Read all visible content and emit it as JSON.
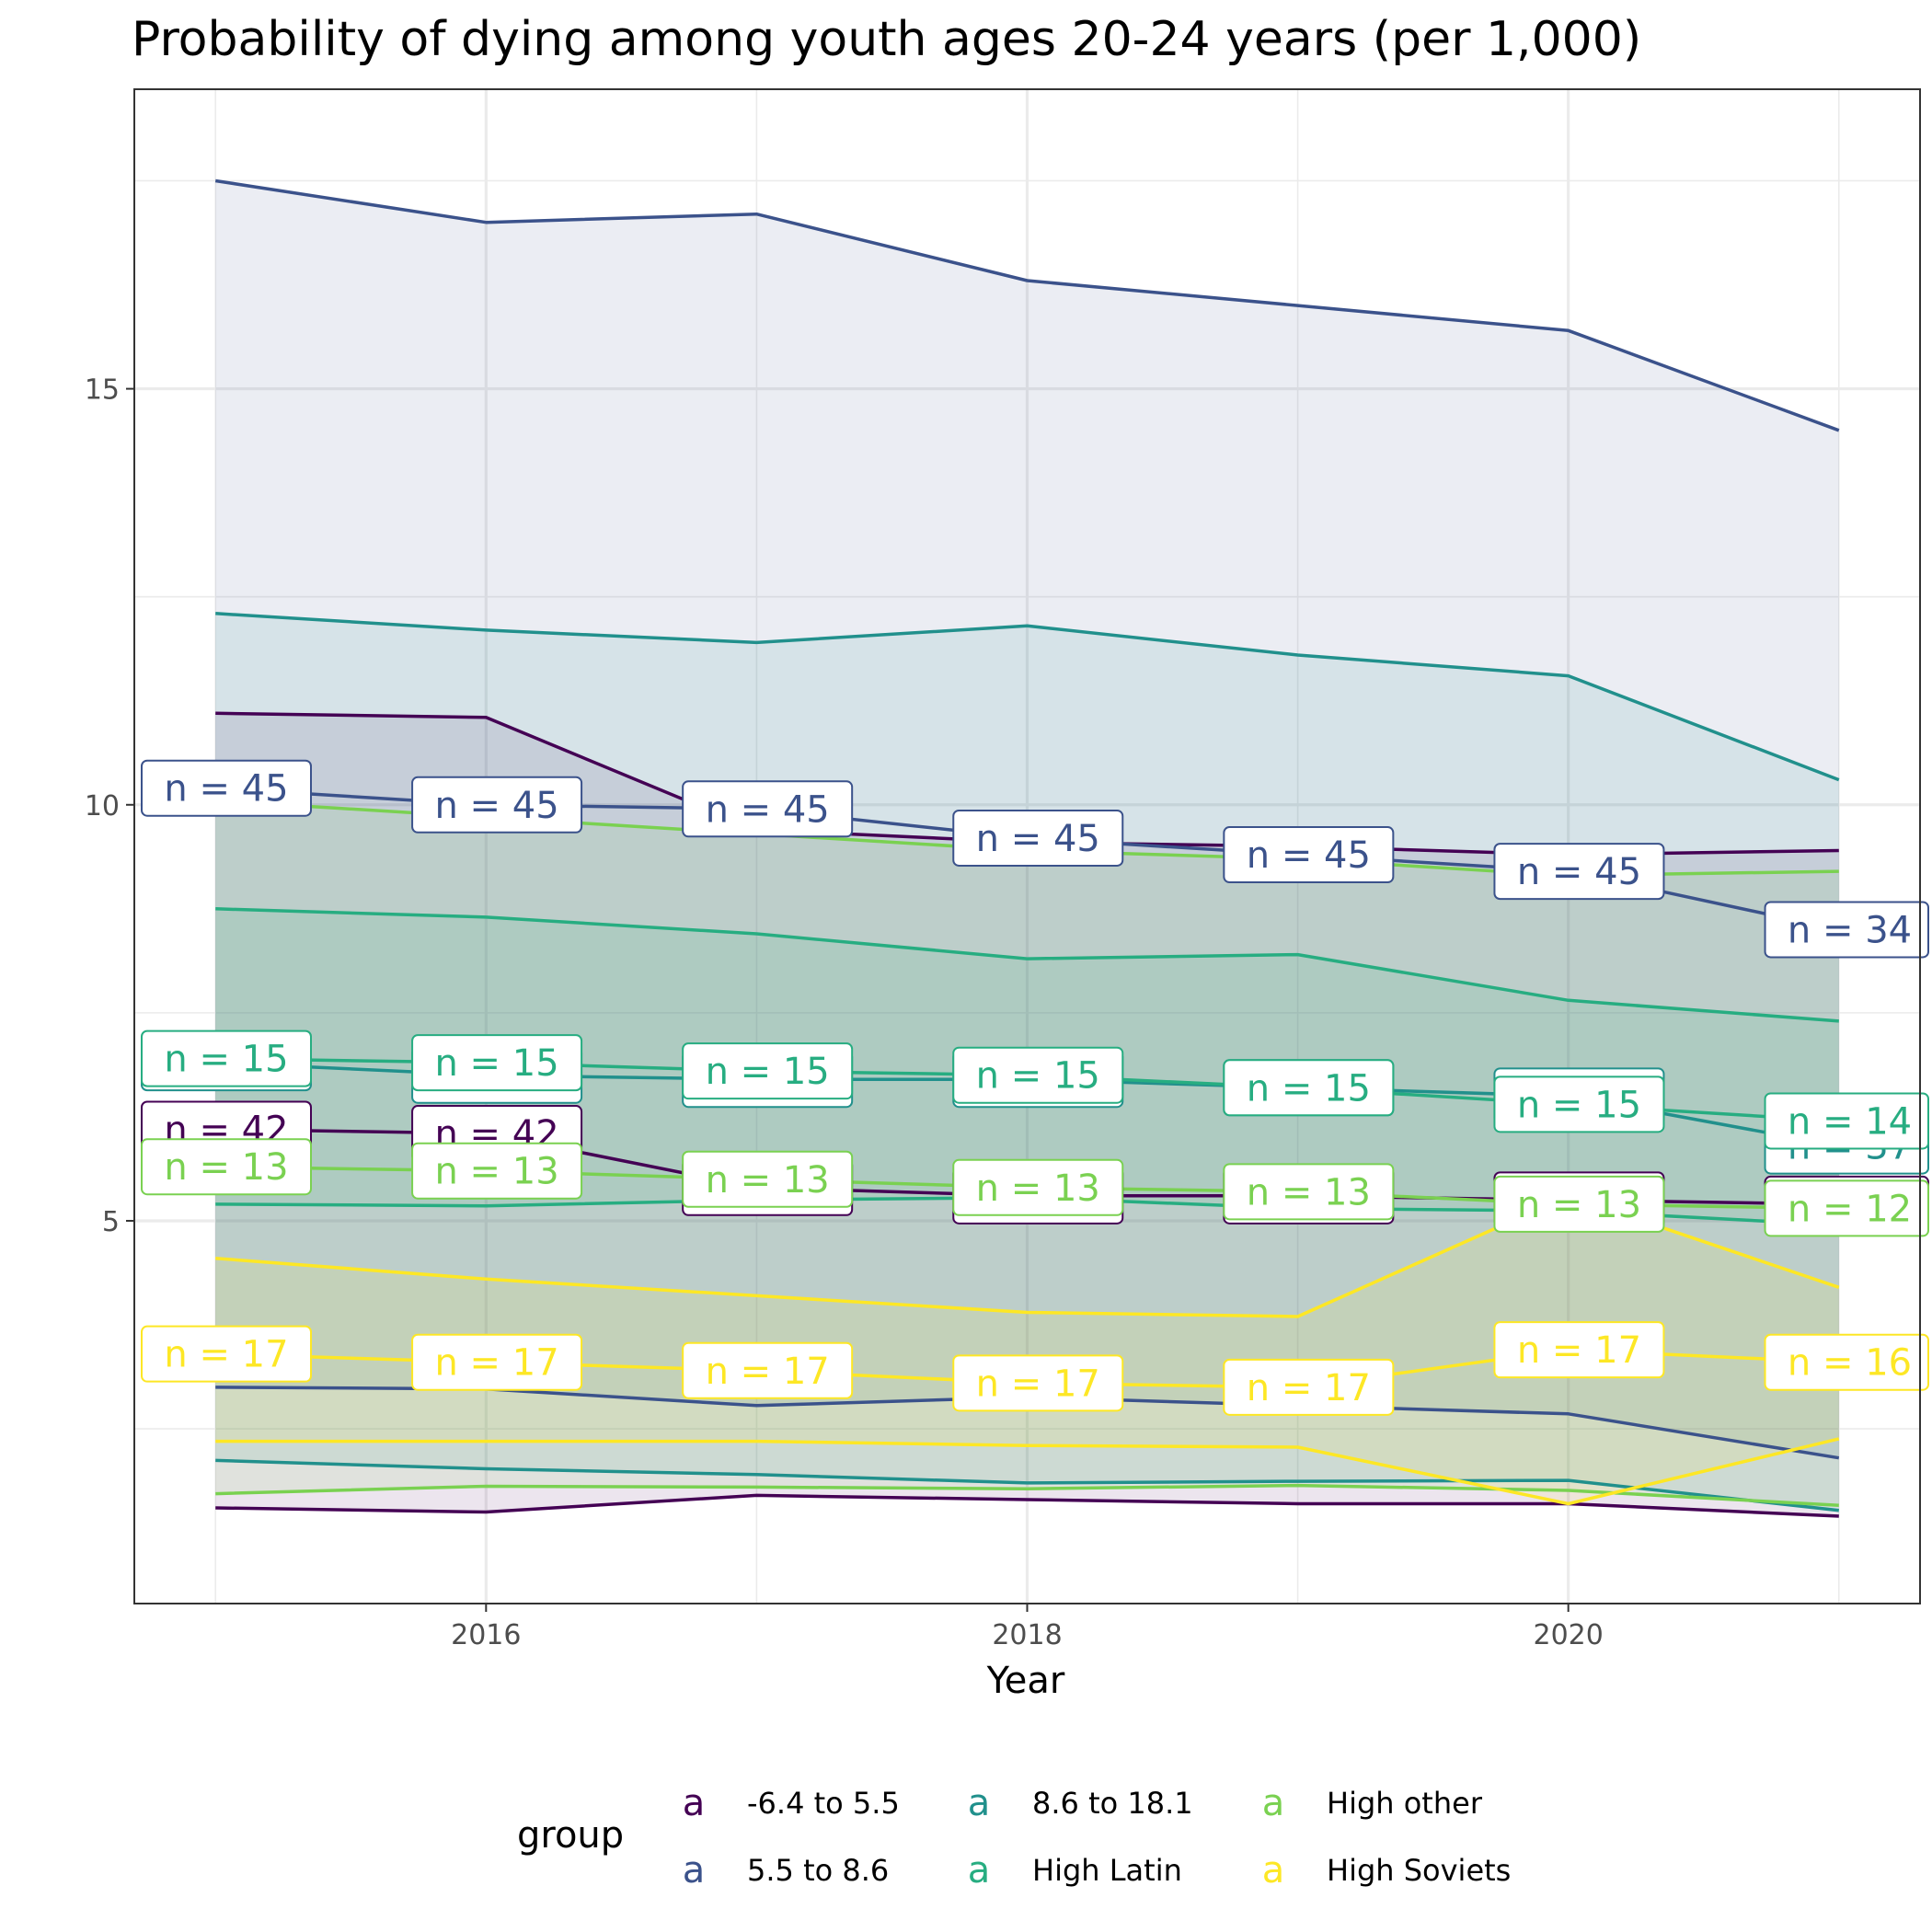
{
  "chart_data": {
    "type": "area",
    "title": "Probability of dying among youth ages 20-24 years (per 1,000)",
    "xlabel": "Year",
    "ylabel": "",
    "xlim": [
      2014.7,
      2021.3
    ],
    "ylim": [
      0.4,
      18.6
    ],
    "x_ticks": [
      2016,
      2018,
      2020
    ],
    "y_ticks": [
      5,
      10,
      15
    ],
    "grid": true,
    "legend": {
      "title": "group",
      "position": "bottom",
      "key_glyph": "a"
    },
    "x": [
      2015,
      2016,
      2017,
      2018,
      2019,
      2020,
      2021
    ],
    "series": [
      {
        "name": "-6.4 to 5.5",
        "color": "#440154",
        "mean": [
          6.1,
          6.05,
          5.4,
          5.3,
          5.3,
          5.25,
          5.2
        ],
        "upper": [
          11.1,
          11.05,
          9.7,
          9.55,
          9.5,
          9.4,
          9.45
        ],
        "lower": [
          1.55,
          1.5,
          1.7,
          1.65,
          1.6,
          1.6,
          1.45
        ],
        "labels": [
          "n = 42",
          "n = 42",
          "n = 42",
          "n = 42",
          "n = 42",
          "n = 42",
          "n = 42"
        ]
      },
      {
        "name": "5.5 to 8.6",
        "color": "#3b528b",
        "mean": [
          10.2,
          10.0,
          9.95,
          9.6,
          9.4,
          9.2,
          8.5
        ],
        "upper": [
          17.5,
          17.0,
          17.1,
          16.3,
          16.0,
          15.7,
          14.5
        ],
        "lower": [
          3.0,
          2.98,
          2.78,
          2.88,
          2.78,
          2.68,
          2.15
        ],
        "labels": [
          "n = 45",
          "n = 45",
          "n = 45",
          "n = 45",
          "n = 45",
          "n = 45",
          "n = 34"
        ]
      },
      {
        "name": "8.6 to 18.1",
        "color": "#21908c",
        "mean": [
          6.9,
          6.75,
          6.7,
          6.7,
          6.6,
          6.5,
          5.9
        ],
        "upper": [
          12.3,
          12.1,
          11.95,
          12.15,
          11.8,
          11.55,
          10.3
        ],
        "lower": [
          2.12,
          2.02,
          1.95,
          1.85,
          1.87,
          1.88,
          1.52
        ],
        "labels": [
          "n = 15",
          "n = 15",
          "n = 15",
          "n = 15",
          "n = 15",
          "n = 15",
          "n = 37"
        ]
      },
      {
        "name": "High Latin",
        "color": "#27ad81",
        "mean": [
          6.95,
          6.9,
          6.8,
          6.75,
          6.6,
          6.4,
          6.2
        ],
        "upper": [
          8.75,
          8.65,
          8.45,
          8.15,
          8.2,
          7.65,
          7.4
        ],
        "lower": [
          5.2,
          5.18,
          5.25,
          5.28,
          5.15,
          5.12,
          4.95
        ],
        "labels": [
          "n = 15",
          "n = 15",
          "n = 15",
          "n = 15",
          "n = 15",
          "n = 15",
          "n = 14"
        ]
      },
      {
        "name": "High other",
        "color": "#7ad151",
        "mean": [
          5.65,
          5.6,
          5.5,
          5.4,
          5.35,
          5.2,
          5.15
        ],
        "upper": [
          10.05,
          9.85,
          9.65,
          9.45,
          9.35,
          9.15,
          9.2
        ],
        "lower": [
          1.72,
          1.81,
          1.8,
          1.78,
          1.82,
          1.76,
          1.58
        ],
        "labels": [
          "n = 13",
          "n = 13",
          "n = 13",
          "n = 13",
          "n = 13",
          "n = 13",
          "n = 12"
        ]
      },
      {
        "name": "High Soviets",
        "color": "#fde725",
        "mean": [
          3.4,
          3.3,
          3.2,
          3.05,
          3.0,
          3.45,
          3.3
        ],
        "upper": [
          4.55,
          4.3,
          4.1,
          3.9,
          3.85,
          5.3,
          4.2
        ],
        "lower": [
          2.35,
          2.35,
          2.35,
          2.3,
          2.28,
          1.6,
          2.38
        ],
        "labels": [
          "n = 17",
          "n = 17",
          "n = 17",
          "n = 17",
          "n = 17",
          "n = 17",
          "n = 16"
        ]
      }
    ]
  }
}
